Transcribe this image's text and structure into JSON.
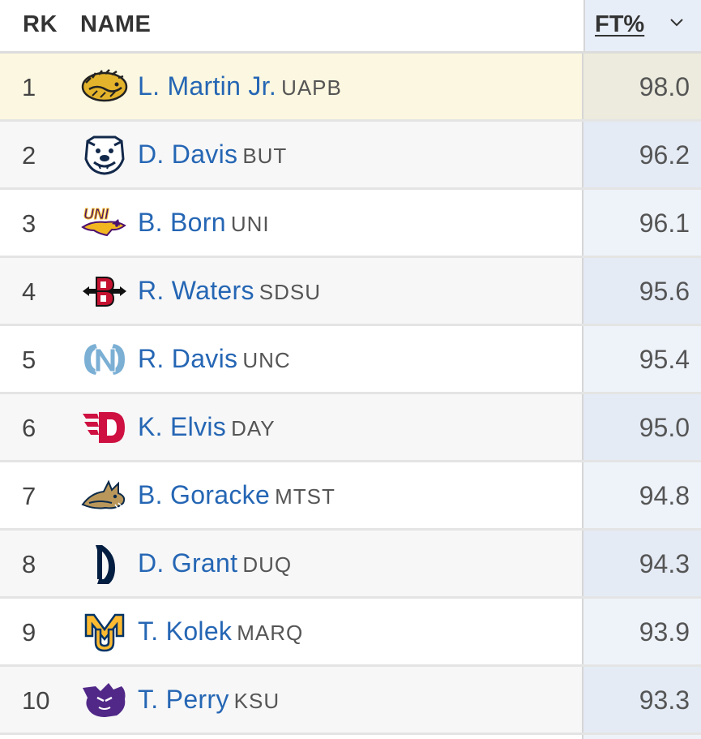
{
  "header": {
    "rk": "RK",
    "name": "NAME",
    "ft": "FT%"
  },
  "rows": [
    {
      "rk": "1",
      "name": "L. Martin Jr.",
      "team": "UAPB",
      "ft": "98.0"
    },
    {
      "rk": "2",
      "name": "D. Davis",
      "team": "BUT",
      "ft": "96.2"
    },
    {
      "rk": "3",
      "name": "B. Born",
      "team": "UNI",
      "ft": "96.1"
    },
    {
      "rk": "4",
      "name": "R. Waters",
      "team": "SDSU",
      "ft": "95.6"
    },
    {
      "rk": "5",
      "name": "R. Davis",
      "team": "UNC",
      "ft": "95.4"
    },
    {
      "rk": "6",
      "name": "K. Elvis",
      "team": "DAY",
      "ft": "95.0"
    },
    {
      "rk": "7",
      "name": "B. Goracke",
      "team": "MTST",
      "ft": "94.8"
    },
    {
      "rk": "8",
      "name": "D. Grant",
      "team": "DUQ",
      "ft": "94.3"
    },
    {
      "rk": "9",
      "name": "T. Kolek",
      "team": "MARQ",
      "ft": "93.9"
    },
    {
      "rk": "10",
      "name": "T. Perry",
      "team": "KSU",
      "ft": "93.3"
    }
  ],
  "logos": [
    "uapb-golden-lion-logo",
    "butler-bulldog-logo",
    "uni-panther-logo",
    "sdsu-logo",
    "unc-logo",
    "dayton-logo",
    "montana-state-bobcat-logo",
    "duquesne-logo",
    "marquette-logo",
    "kansas-state-wildcat-logo"
  ],
  "colors": {
    "link": "#2566b4",
    "highlight_row": "#fcf7e0",
    "sorted_column": "#e8eef7"
  }
}
